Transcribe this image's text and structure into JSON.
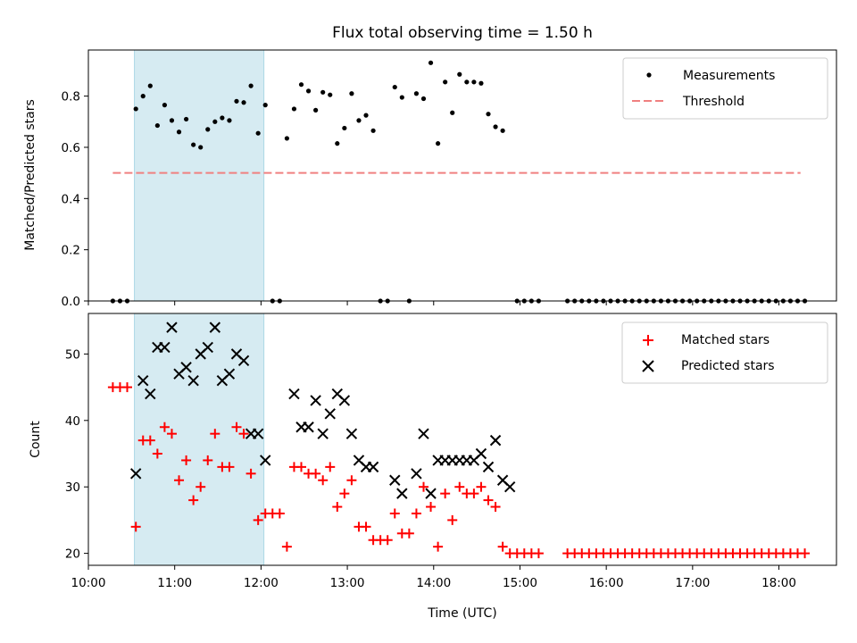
{
  "chart_data": [
    {
      "type": "scatter",
      "title": "Flux total observing time = 1.50 h",
      "xlabel": "",
      "ylabel": "Matched/Predicted stars",
      "xlim": [
        "10:00",
        "18:40"
      ],
      "ylim": [
        0,
        0.98
      ],
      "yticks": [
        "0.0",
        "0.2",
        "0.4",
        "0.6",
        "0.8"
      ],
      "highlight_span": [
        "10:32",
        "12:02"
      ],
      "legend_placement": "top-right",
      "threshold": {
        "name": "Threshold",
        "y": 0.5,
        "x": [
          "10:17",
          "18:15"
        ],
        "color": "#f08080",
        "style": "dashed"
      },
      "series": [
        {
          "name": "Measurements",
          "color": "#000000",
          "marker": "dot",
          "points": [
            [
              "10:17",
              0
            ],
            [
              "10:22",
              0
            ],
            [
              "10:27",
              0
            ],
            [
              "10:33",
              0.75
            ],
            [
              "10:38",
              0.8
            ],
            [
              "10:43",
              0.84
            ],
            [
              "10:48",
              0.685
            ],
            [
              "10:53",
              0.765
            ],
            [
              "10:58",
              0.705
            ],
            [
              "11:03",
              0.66
            ],
            [
              "11:08",
              0.71
            ],
            [
              "11:13",
              0.61
            ],
            [
              "11:18",
              0.6
            ],
            [
              "11:23",
              0.67
            ],
            [
              "11:28",
              0.7
            ],
            [
              "11:33",
              0.715
            ],
            [
              "11:38",
              0.705
            ],
            [
              "11:43",
              0.78
            ],
            [
              "11:48",
              0.775
            ],
            [
              "11:53",
              0.84
            ],
            [
              "11:58",
              0.655
            ],
            [
              "12:03",
              0.765
            ],
            [
              "12:08",
              0
            ],
            [
              "12:13",
              0
            ],
            [
              "12:18",
              0.635
            ],
            [
              "12:23",
              0.75
            ],
            [
              "12:28",
              0.845
            ],
            [
              "12:33",
              0.82
            ],
            [
              "12:38",
              0.745
            ],
            [
              "12:43",
              0.815
            ],
            [
              "12:48",
              0.805
            ],
            [
              "12:53",
              0.615
            ],
            [
              "12:58",
              0.675
            ],
            [
              "13:03",
              0.81
            ],
            [
              "13:08",
              0.705
            ],
            [
              "13:13",
              0.725
            ],
            [
              "13:18",
              0.665
            ],
            [
              "13:23",
              0
            ],
            [
              "13:28",
              0
            ],
            [
              "13:33",
              0.835
            ],
            [
              "13:38",
              0.795
            ],
            [
              "13:43",
              0
            ],
            [
              "13:48",
              0.81
            ],
            [
              "13:53",
              0.79
            ],
            [
              "13:58",
              0.93
            ],
            [
              "14:03",
              0.615
            ],
            [
              "14:08",
              0.855
            ],
            [
              "14:13",
              0.735
            ],
            [
              "14:18",
              0.885
            ],
            [
              "14:23",
              0.855
            ],
            [
              "14:28",
              0.855
            ],
            [
              "14:33",
              0.85
            ],
            [
              "14:38",
              0.73
            ],
            [
              "14:43",
              0.68
            ],
            [
              "14:48",
              0.665
            ],
            [
              "14:58",
              0
            ],
            [
              "15:03",
              0
            ],
            [
              "15:08",
              0
            ],
            [
              "15:13",
              0
            ],
            [
              "15:33",
              0
            ],
            [
              "15:38",
              0
            ],
            [
              "15:43",
              0
            ],
            [
              "15:48",
              0
            ],
            [
              "15:53",
              0
            ],
            [
              "15:58",
              0
            ],
            [
              "16:03",
              0
            ],
            [
              "16:08",
              0
            ],
            [
              "16:13",
              0
            ],
            [
              "16:18",
              0
            ],
            [
              "16:23",
              0
            ],
            [
              "16:28",
              0
            ],
            [
              "16:33",
              0
            ],
            [
              "16:38",
              0
            ],
            [
              "16:43",
              0
            ],
            [
              "16:48",
              0
            ],
            [
              "16:53",
              0
            ],
            [
              "16:58",
              0
            ],
            [
              "17:03",
              0
            ],
            [
              "17:08",
              0
            ],
            [
              "17:13",
              0
            ],
            [
              "17:18",
              0
            ],
            [
              "17:23",
              0
            ],
            [
              "17:28",
              0
            ],
            [
              "17:33",
              0
            ],
            [
              "17:38",
              0
            ],
            [
              "17:43",
              0
            ],
            [
              "17:48",
              0
            ],
            [
              "17:53",
              0
            ],
            [
              "17:58",
              0
            ],
            [
              "18:03",
              0
            ],
            [
              "18:08",
              0
            ],
            [
              "18:13",
              0
            ],
            [
              "18:18",
              0
            ]
          ]
        }
      ]
    },
    {
      "type": "scatter",
      "title": "",
      "xlabel": "Time (UTC)",
      "ylabel": "Count",
      "xlim": [
        "10:00",
        "18:40"
      ],
      "ylim": [
        18.2,
        56.1
      ],
      "xticks": [
        "10:00",
        "11:00",
        "12:00",
        "13:00",
        "14:00",
        "15:00",
        "16:00",
        "17:00",
        "18:00"
      ],
      "yticks": [
        "20",
        "30",
        "40",
        "50"
      ],
      "highlight_span": [
        "10:32",
        "12:02"
      ],
      "legend_placement": "top-right",
      "series": [
        {
          "name": "Matched stars",
          "color": "#ff0000",
          "marker": "plus",
          "points": [
            [
              "10:17",
              45
            ],
            [
              "10:22",
              45
            ],
            [
              "10:27",
              45
            ],
            [
              "10:33",
              24
            ],
            [
              "10:38",
              37
            ],
            [
              "10:43",
              37
            ],
            [
              "10:48",
              35
            ],
            [
              "10:53",
              39
            ],
            [
              "10:58",
              38
            ],
            [
              "11:03",
              31
            ],
            [
              "11:08",
              34
            ],
            [
              "11:13",
              28
            ],
            [
              "11:18",
              30
            ],
            [
              "11:23",
              34
            ],
            [
              "11:28",
              38
            ],
            [
              "11:33",
              33
            ],
            [
              "11:38",
              33
            ],
            [
              "11:43",
              39
            ],
            [
              "11:48",
              38
            ],
            [
              "11:53",
              32
            ],
            [
              "11:58",
              25
            ],
            [
              "12:03",
              26
            ],
            [
              "12:08",
              26
            ],
            [
              "12:13",
              26
            ],
            [
              "12:18",
              21
            ],
            [
              "12:23",
              33
            ],
            [
              "12:28",
              33
            ],
            [
              "12:33",
              32
            ],
            [
              "12:38",
              32
            ],
            [
              "12:43",
              31
            ],
            [
              "12:48",
              33
            ],
            [
              "12:53",
              27
            ],
            [
              "12:58",
              29
            ],
            [
              "13:03",
              31
            ],
            [
              "13:08",
              24
            ],
            [
              "13:13",
              24
            ],
            [
              "13:18",
              22
            ],
            [
              "13:23",
              22
            ],
            [
              "13:28",
              22
            ],
            [
              "13:33",
              26
            ],
            [
              "13:38",
              23
            ],
            [
              "13:43",
              23
            ],
            [
              "13:48",
              26
            ],
            [
              "13:53",
              30
            ],
            [
              "13:58",
              27
            ],
            [
              "14:03",
              21
            ],
            [
              "14:08",
              29
            ],
            [
              "14:13",
              25
            ],
            [
              "14:18",
              30
            ],
            [
              "14:23",
              29
            ],
            [
              "14:28",
              29
            ],
            [
              "14:33",
              30
            ],
            [
              "14:38",
              28
            ],
            [
              "14:43",
              27
            ],
            [
              "14:48",
              21
            ],
            [
              "14:53",
              20
            ],
            [
              "14:58",
              20
            ],
            [
              "15:03",
              20
            ],
            [
              "15:08",
              20
            ],
            [
              "15:13",
              20
            ],
            [
              "15:33",
              20
            ],
            [
              "15:38",
              20
            ],
            [
              "15:43",
              20
            ],
            [
              "15:48",
              20
            ],
            [
              "15:53",
              20
            ],
            [
              "15:58",
              20
            ],
            [
              "16:03",
              20
            ],
            [
              "16:08",
              20
            ],
            [
              "16:13",
              20
            ],
            [
              "16:18",
              20
            ],
            [
              "16:23",
              20
            ],
            [
              "16:28",
              20
            ],
            [
              "16:33",
              20
            ],
            [
              "16:38",
              20
            ],
            [
              "16:43",
              20
            ],
            [
              "16:48",
              20
            ],
            [
              "16:53",
              20
            ],
            [
              "16:58",
              20
            ],
            [
              "17:03",
              20
            ],
            [
              "17:08",
              20
            ],
            [
              "17:13",
              20
            ],
            [
              "17:18",
              20
            ],
            [
              "17:23",
              20
            ],
            [
              "17:28",
              20
            ],
            [
              "17:33",
              20
            ],
            [
              "17:38",
              20
            ],
            [
              "17:43",
              20
            ],
            [
              "17:48",
              20
            ],
            [
              "17:53",
              20
            ],
            [
              "17:58",
              20
            ],
            [
              "18:03",
              20
            ],
            [
              "18:08",
              20
            ],
            [
              "18:13",
              20
            ],
            [
              "18:18",
              20
            ]
          ]
        },
        {
          "name": "Predicted stars",
          "color": "#000000",
          "marker": "x",
          "points": [
            [
              "10:33",
              32
            ],
            [
              "10:38",
              46
            ],
            [
              "10:43",
              44
            ],
            [
              "10:48",
              51
            ],
            [
              "10:53",
              51
            ],
            [
              "10:58",
              54
            ],
            [
              "11:03",
              47
            ],
            [
              "11:08",
              48
            ],
            [
              "11:13",
              46
            ],
            [
              "11:18",
              50
            ],
            [
              "11:23",
              51
            ],
            [
              "11:28",
              54
            ],
            [
              "11:33",
              46
            ],
            [
              "11:38",
              47
            ],
            [
              "11:43",
              50
            ],
            [
              "11:48",
              49
            ],
            [
              "11:53",
              38
            ],
            [
              "11:58",
              38
            ],
            [
              "12:03",
              34
            ],
            [
              "12:23",
              44
            ],
            [
              "12:28",
              39
            ],
            [
              "12:33",
              39
            ],
            [
              "12:38",
              43
            ],
            [
              "12:43",
              38
            ],
            [
              "12:48",
              41
            ],
            [
              "12:53",
              44
            ],
            [
              "12:58",
              43
            ],
            [
              "13:03",
              38
            ],
            [
              "13:08",
              34
            ],
            [
              "13:13",
              33
            ],
            [
              "13:18",
              33
            ],
            [
              "13:33",
              31
            ],
            [
              "13:38",
              29
            ],
            [
              "13:48",
              32
            ],
            [
              "13:53",
              38
            ],
            [
              "13:58",
              29
            ],
            [
              "14:03",
              34
            ],
            [
              "14:08",
              34
            ],
            [
              "14:13",
              34
            ],
            [
              "14:18",
              34
            ],
            [
              "14:23",
              34
            ],
            [
              "14:28",
              34
            ],
            [
              "14:33",
              35
            ],
            [
              "14:38",
              33
            ],
            [
              "14:43",
              37
            ],
            [
              "14:48",
              31
            ],
            [
              "14:53",
              30
            ]
          ]
        }
      ]
    }
  ]
}
